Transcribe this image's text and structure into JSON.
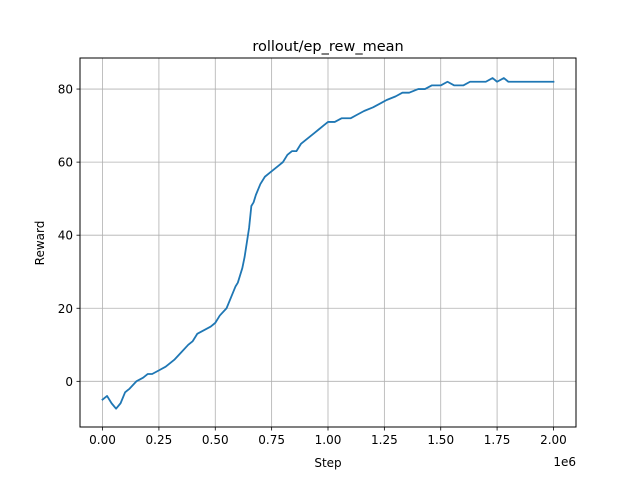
{
  "chart_data": {
    "type": "line",
    "title": "rollout/ep_rew_mean",
    "xlabel": "Step",
    "ylabel": "Reward",
    "x_offset_label": "1e6",
    "x_scale": 1000000,
    "xlim": [
      -0.1,
      2.1
    ],
    "ylim": [
      -12.5,
      88.5
    ],
    "xticks": [
      0.0,
      0.25,
      0.5,
      0.75,
      1.0,
      1.25,
      1.5,
      1.75,
      2.0
    ],
    "xtick_labels": [
      "0.00",
      "0.25",
      "0.50",
      "0.75",
      "1.00",
      "1.25",
      "1.50",
      "1.75",
      "2.00"
    ],
    "yticks": [
      0,
      20,
      40,
      60,
      80
    ],
    "ytick_labels": [
      "0",
      "20",
      "40",
      "60",
      "80"
    ],
    "grid": true,
    "legend": "none",
    "series": [
      {
        "color": "#1f77b4",
        "x": [
          0.0,
          0.02,
          0.04,
          0.06,
          0.08,
          0.1,
          0.12,
          0.15,
          0.18,
          0.2,
          0.22,
          0.25,
          0.28,
          0.3,
          0.32,
          0.35,
          0.38,
          0.4,
          0.42,
          0.45,
          0.48,
          0.5,
          0.52,
          0.55,
          0.57,
          0.59,
          0.6,
          0.61,
          0.62,
          0.63,
          0.64,
          0.65,
          0.66,
          0.67,
          0.68,
          0.7,
          0.72,
          0.74,
          0.76,
          0.78,
          0.8,
          0.82,
          0.84,
          0.86,
          0.88,
          0.9,
          0.92,
          0.94,
          0.96,
          0.98,
          1.0,
          1.03,
          1.06,
          1.1,
          1.13,
          1.16,
          1.2,
          1.23,
          1.26,
          1.3,
          1.33,
          1.36,
          1.4,
          1.43,
          1.46,
          1.5,
          1.53,
          1.56,
          1.6,
          1.63,
          1.66,
          1.7,
          1.73,
          1.75,
          1.78,
          1.8,
          1.83,
          1.86,
          1.9,
          1.93,
          1.96,
          2.0
        ],
        "y": [
          -5,
          -4,
          -6,
          -7.5,
          -6,
          -3,
          -2,
          0,
          1,
          2,
          2,
          3,
          4,
          5,
          6,
          8,
          10,
          11,
          13,
          14,
          15,
          16,
          18,
          20,
          23,
          26,
          27,
          29,
          31,
          34,
          38,
          42,
          48,
          49,
          51,
          54,
          56,
          57,
          58,
          59,
          60,
          62,
          63,
          63,
          65,
          66,
          67,
          68,
          69,
          70,
          71,
          71,
          72,
          72,
          73,
          74,
          75,
          76,
          77,
          78,
          79,
          79,
          80,
          80,
          81,
          81,
          82,
          81,
          81,
          82,
          82,
          82,
          83,
          82,
          83,
          82,
          82,
          82,
          82,
          82,
          82,
          82
        ]
      }
    ]
  }
}
